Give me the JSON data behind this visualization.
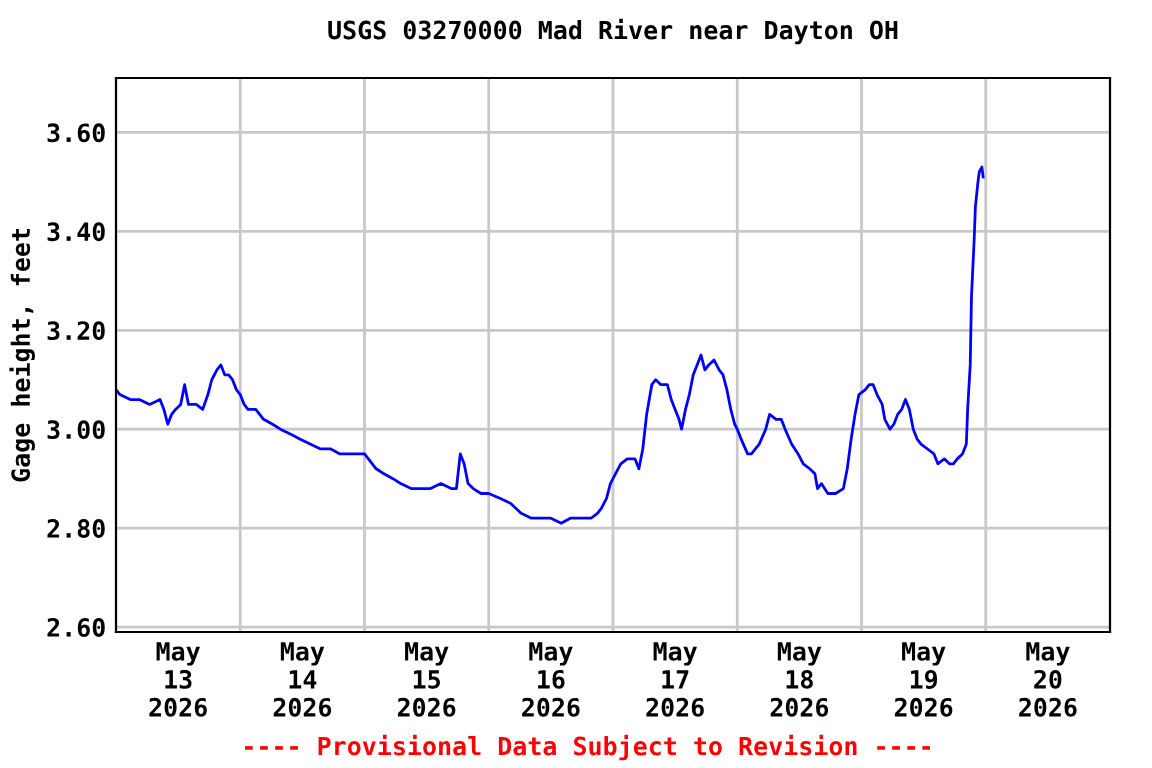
{
  "chart_data": {
    "type": "line",
    "title": "USGS 03270000 Mad River near Dayton OH",
    "ylabel": "Gage height, feet",
    "annotations": [
      "---- Provisional Data Subject to Revision ----"
    ],
    "x": [
      "2026-05-13T00:00",
      "2026-05-13T00:45",
      "2026-05-13T02:45",
      "2026-05-13T04:30",
      "2026-05-13T06:30",
      "2026-05-13T08:30",
      "2026-05-13T09:15",
      "2026-05-13T10:00",
      "2026-05-13T10:45",
      "2026-05-13T11:30",
      "2026-05-13T12:30",
      "2026-05-13T13:15",
      "2026-05-13T14:00",
      "2026-05-13T15:30",
      "2026-05-13T16:45",
      "2026-05-13T17:45",
      "2026-05-13T18:30",
      "2026-05-13T19:30",
      "2026-05-13T20:15",
      "2026-05-13T21:00",
      "2026-05-13T21:45",
      "2026-05-13T22:30",
      "2026-05-13T23:15",
      "2026-05-14T00:00",
      "2026-05-14T00:45",
      "2026-05-14T01:30",
      "2026-05-14T03:00",
      "2026-05-14T04:30",
      "2026-05-14T06:15",
      "2026-05-14T07:45",
      "2026-05-14T09:45",
      "2026-05-14T11:30",
      "2026-05-14T13:30",
      "2026-05-14T15:30",
      "2026-05-14T17:30",
      "2026-05-14T19:15",
      "2026-05-14T23:15",
      "2026-05-15T00:00",
      "2026-05-15T00:45",
      "2026-05-15T02:15",
      "2026-05-15T03:45",
      "2026-05-15T05:30",
      "2026-05-15T07:00",
      "2026-05-15T09:00",
      "2026-05-15T10:45",
      "2026-05-15T12:45",
      "2026-05-15T14:45",
      "2026-05-15T16:45",
      "2026-05-15T17:45",
      "2026-05-15T18:30",
      "2026-05-15T19:15",
      "2026-05-15T20:00",
      "2026-05-15T21:00",
      "2026-05-15T22:30",
      "2026-05-16T00:00",
      "2026-05-16T02:15",
      "2026-05-16T04:15",
      "2026-05-16T06:15",
      "2026-05-16T08:15",
      "2026-05-16T10:00",
      "2026-05-16T12:00",
      "2026-05-16T14:00",
      "2026-05-16T15:45",
      "2026-05-16T17:45",
      "2026-05-16T19:45",
      "2026-05-16T21:00",
      "2026-05-16T21:45",
      "2026-05-16T22:45",
      "2026-05-16T23:30",
      "2026-05-17T00:30",
      "2026-05-17T01:30",
      "2026-05-17T02:45",
      "2026-05-17T04:15",
      "2026-05-17T05:00",
      "2026-05-17T05:45",
      "2026-05-17T06:30",
      "2026-05-17T07:00",
      "2026-05-17T07:30",
      "2026-05-17T08:15",
      "2026-05-17T09:15",
      "2026-05-17T10:30",
      "2026-05-17T11:15",
      "2026-05-17T12:00",
      "2026-05-17T12:45",
      "2026-05-17T13:15",
      "2026-05-17T14:00",
      "2026-05-17T14:45",
      "2026-05-17T15:30",
      "2026-05-17T16:15",
      "2026-05-17T17:00",
      "2026-05-17T17:45",
      "2026-05-17T18:30",
      "2026-05-17T19:30",
      "2026-05-17T20:30",
      "2026-05-17T21:15",
      "2026-05-17T22:00",
      "2026-05-17T22:45",
      "2026-05-17T23:30",
      "2026-05-18T00:00",
      "2026-05-18T00:45",
      "2026-05-18T02:00",
      "2026-05-18T02:45",
      "2026-05-18T03:30",
      "2026-05-18T04:15",
      "2026-05-18T05:30",
      "2026-05-18T06:15",
      "2026-05-18T07:30",
      "2026-05-18T08:30",
      "2026-05-18T09:15",
      "2026-05-18T10:30",
      "2026-05-18T11:45",
      "2026-05-18T12:45",
      "2026-05-18T14:00",
      "2026-05-18T15:00",
      "2026-05-18T15:30",
      "2026-05-18T16:15",
      "2026-05-18T17:30",
      "2026-05-18T19:00",
      "2026-05-18T20:30",
      "2026-05-18T21:15",
      "2026-05-18T22:00",
      "2026-05-18T22:45",
      "2026-05-18T23:30",
      "2026-05-19T00:45",
      "2026-05-19T01:30",
      "2026-05-19T02:15",
      "2026-05-19T03:00",
      "2026-05-19T04:00",
      "2026-05-19T04:30",
      "2026-05-19T05:30",
      "2026-05-19T06:15",
      "2026-05-19T07:00",
      "2026-05-19T07:45",
      "2026-05-19T08:30",
      "2026-05-19T09:15",
      "2026-05-19T10:00",
      "2026-05-19T10:45",
      "2026-05-19T11:30",
      "2026-05-19T12:45",
      "2026-05-19T14:00",
      "2026-05-19T14:45",
      "2026-05-19T16:00",
      "2026-05-19T17:00",
      "2026-05-19T17:45",
      "2026-05-19T18:30",
      "2026-05-19T19:30",
      "2026-05-19T20:15",
      "2026-05-19T20:30",
      "2026-05-19T21:00",
      "2026-05-19T21:15",
      "2026-05-19T21:45",
      "2026-05-19T22:00",
      "2026-05-19T22:30",
      "2026-05-19T22:45",
      "2026-05-19T23:15",
      "2026-05-19T23:30"
    ],
    "series": [
      {
        "color": "#0000ff",
        "values": [
          3.08,
          3.07,
          3.06,
          3.06,
          3.05,
          3.06,
          3.04,
          3.01,
          3.03,
          3.04,
          3.05,
          3.09,
          3.05,
          3.05,
          3.04,
          3.07,
          3.1,
          3.12,
          3.13,
          3.11,
          3.11,
          3.1,
          3.08,
          3.07,
          3.05,
          3.04,
          3.04,
          3.02,
          3.01,
          3.0,
          2.99,
          2.98,
          2.97,
          2.96,
          2.96,
          2.95,
          2.95,
          2.95,
          2.94,
          2.92,
          2.91,
          2.9,
          2.89,
          2.88,
          2.88,
          2.88,
          2.89,
          2.88,
          2.88,
          2.95,
          2.93,
          2.89,
          2.88,
          2.87,
          2.87,
          2.86,
          2.85,
          2.83,
          2.82,
          2.82,
          2.82,
          2.81,
          2.82,
          2.82,
          2.82,
          2.83,
          2.84,
          2.86,
          2.89,
          2.91,
          2.93,
          2.94,
          2.94,
          2.92,
          2.96,
          3.03,
          3.06,
          3.09,
          3.1,
          3.09,
          3.09,
          3.06,
          3.04,
          3.02,
          3.0,
          3.04,
          3.07,
          3.11,
          3.13,
          3.15,
          3.12,
          3.13,
          3.14,
          3.12,
          3.11,
          3.08,
          3.04,
          3.01,
          3.0,
          2.98,
          2.95,
          2.95,
          2.96,
          2.97,
          3.0,
          3.03,
          3.02,
          3.02,
          3.0,
          2.97,
          2.95,
          2.93,
          2.92,
          2.91,
          2.88,
          2.89,
          2.87,
          2.87,
          2.88,
          2.92,
          2.98,
          3.03,
          3.07,
          3.08,
          3.09,
          3.09,
          3.07,
          3.05,
          3.02,
          3.0,
          3.01,
          3.03,
          3.04,
          3.06,
          3.04,
          3.0,
          2.98,
          2.97,
          2.96,
          2.95,
          2.93,
          2.94,
          2.93,
          2.93,
          2.94,
          2.95,
          2.97,
          3.04,
          3.13,
          3.27,
          3.38,
          3.45,
          3.5,
          3.52,
          3.53,
          3.51
        ]
      }
    ],
    "xlim": [
      "2026-05-13T00:00",
      "2026-05-21T00:00"
    ],
    "xticks": [
      {
        "value": "2026-05-13T12:00",
        "label": "May\n13\n2026"
      },
      {
        "value": "2026-05-14T00:00",
        "label": null
      },
      {
        "value": "2026-05-14T12:00",
        "label": "May\n14\n2026"
      },
      {
        "value": "2026-05-15T00:00",
        "label": null
      },
      {
        "value": "2026-05-15T12:00",
        "label": "May\n15\n2026"
      },
      {
        "value": "2026-05-16T00:00",
        "label": null
      },
      {
        "value": "2026-05-16T12:00",
        "label": "May\n16\n2026"
      },
      {
        "value": "2026-05-17T00:00",
        "label": null
      },
      {
        "value": "2026-05-17T12:00",
        "label": "May\n17\n2026"
      },
      {
        "value": "2026-05-18T00:00",
        "label": null
      },
      {
        "value": "2026-05-18T12:00",
        "label": "May\n18\n2026"
      },
      {
        "value": "2026-05-19T00:00",
        "label": null
      },
      {
        "value": "2026-05-19T12:00",
        "label": "May\n19\n2026"
      },
      {
        "value": "2026-05-20T00:00",
        "label": null
      },
      {
        "value": "2026-05-20T12:00",
        "label": "May\n20\n2026"
      }
    ],
    "ylim": [
      2.59,
      3.71
    ],
    "yticks": [
      {
        "value": 2.6,
        "label": "2.60"
      },
      {
        "value": 2.8,
        "label": "2.80"
      },
      {
        "value": 3.0,
        "label": "3.00"
      },
      {
        "value": 3.2,
        "label": "3.20"
      },
      {
        "value": 3.4,
        "label": "3.40"
      },
      {
        "value": 3.6,
        "label": "3.60"
      }
    ],
    "grid": true,
    "marker": "none",
    "line_style": "solid"
  }
}
